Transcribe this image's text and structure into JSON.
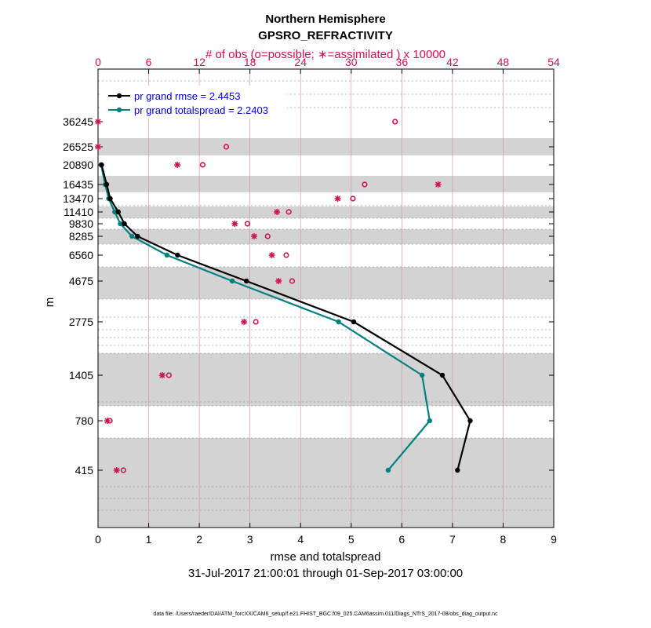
{
  "chart_data": {
    "type": "line",
    "title": "Northern Hemisphere",
    "subtitle": "GPSRO_REFRACTIVITY",
    "top_axis_label": "# of obs (o=possible; ∗=assimilated ) x 10000",
    "xlabel": "rmse and totalspread",
    "ylabel": "m",
    "date_range": "31-Jul-2017 21:00:01 through 01-Sep-2017 03:00:00",
    "footnote": "data file: /Users/raeder/DAI/ATM_forcXX/CAM6_setup/f.e21.FHIST_BGC.f09_025.CAM6assim.011/Diags_NTrS_2017-08/obs_diag_output.nc",
    "xlim": [
      0,
      9
    ],
    "xticks": [
      "0",
      "1",
      "2",
      "3",
      "4",
      "5",
      "6",
      "7",
      "8",
      "9"
    ],
    "top_xlim": [
      0,
      54
    ],
    "top_xticks": [
      "0",
      "6",
      "12",
      "18",
      "24",
      "30",
      "36",
      "42",
      "48",
      "54"
    ],
    "levels": [
      "36245",
      "26525",
      "20890",
      "16435",
      "13470",
      "11410",
      "9830",
      "8285",
      "6560",
      "4675",
      "2775",
      "1405",
      "780",
      "415"
    ],
    "series": [
      {
        "name": "pr grand rmse = 2.4453",
        "color": "#000000",
        "values": [
          0.07,
          0.17,
          0.24,
          0.4,
          0.52,
          0.78,
          1.57,
          2.93,
          5.05,
          6.8,
          7.35,
          7.1
        ]
      },
      {
        "name": "pr grand totalspread = 2.2403",
        "color": "#008080",
        "values": [
          0.06,
          0.14,
          0.21,
          0.33,
          0.44,
          0.67,
          1.36,
          2.65,
          4.75,
          6.4,
          6.55,
          5.73
        ]
      }
    ],
    "series_levels": [
      "20890",
      "16435",
      "13470",
      "11410",
      "9830",
      "8285",
      "6560",
      "4675",
      "2775",
      "1405",
      "780",
      "415"
    ],
    "obs_possible": [
      35.2,
      15.2,
      12.4,
      31.6,
      30.2,
      22.6,
      17.7,
      20.1,
      22.3,
      23.0,
      18.7,
      8.4,
      1.4,
      3.0
    ],
    "obs_assimilated": [
      0.0,
      0.0,
      9.4,
      40.3,
      28.4,
      21.2,
      16.2,
      18.5,
      20.6,
      21.4,
      17.3,
      7.6,
      1.1,
      2.2
    ],
    "obs_color": "#d0104c",
    "band_color": "#d3d3d3"
  }
}
